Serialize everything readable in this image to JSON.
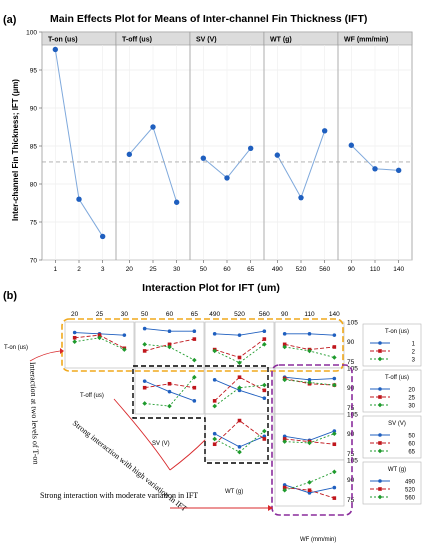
{
  "chart_data": [
    {
      "type": "line",
      "panel_tag": "(a)",
      "title": "Main Effects Plot for Means of Inter-channel Fin Thickness (IFT)",
      "ylabel": "Inter-channel Fin Thickness; IFT (µm)",
      "ylim": [
        70,
        100
      ],
      "yticks": [
        "70",
        "75",
        "80",
        "85",
        "90",
        "95",
        "100"
      ],
      "mean_line": 82.9,
      "grid": true,
      "factors": [
        {
          "name": "T-on (us)",
          "levels": [
            "1",
            "2",
            "3"
          ],
          "values": [
            97.7,
            78.0,
            73.1
          ]
        },
        {
          "name": "T-off (us)",
          "levels": [
            "20",
            "25",
            "30"
          ],
          "values": [
            83.9,
            87.5,
            77.6
          ]
        },
        {
          "name": "SV (V)",
          "levels": [
            "50",
            "60",
            "65"
          ],
          "values": [
            83.4,
            80.8,
            84.7
          ]
        },
        {
          "name": "WT (g)",
          "levels": [
            "490",
            "520",
            "560"
          ],
          "values": [
            83.8,
            78.2,
            87.0
          ]
        },
        {
          "name": "WF (mm/min)",
          "levels": [
            "90",
            "110",
            "140"
          ],
          "values": [
            85.1,
            82.0,
            81.8
          ]
        }
      ]
    },
    {
      "type": "line",
      "panel_tag": "(b)",
      "title": "Interaction Plot for IFT (um)",
      "right_ticks": [
        "75",
        "90",
        "105"
      ],
      "factors": [
        {
          "name": "T-on (us)",
          "levels": [
            "1",
            "2",
            "3"
          ]
        },
        {
          "name": "T-off (us)",
          "levels": [
            "20",
            "25",
            "30"
          ]
        },
        {
          "name": "SV (V)",
          "levels": [
            "50",
            "60",
            "65"
          ]
        },
        {
          "name": "WT (g)",
          "levels": [
            "490",
            "520",
            "560"
          ]
        },
        {
          "name": "WF (mm/min)",
          "levels": [
            "90",
            "110",
            "140"
          ]
        }
      ],
      "top_ticks": [
        [
          "20",
          "25",
          "30"
        ],
        [
          "50",
          "60",
          "65"
        ],
        [
          "490",
          "520",
          "560"
        ],
        [
          "90",
          "110",
          "140"
        ]
      ],
      "legends": [
        {
          "title": "T-on (us)",
          "entries": [
            "1",
            "2",
            "3"
          ]
        },
        {
          "title": "T-off (us)",
          "entries": [
            "20",
            "25",
            "30"
          ]
        },
        {
          "title": "SV (V)",
          "entries": [
            "50",
            "60",
            "65"
          ]
        },
        {
          "title": "WT (g)",
          "entries": [
            "490",
            "520",
            "560"
          ]
        }
      ],
      "series_colors": [
        "#1f5fbf",
        "#c0161c",
        "#1e9a2c"
      ],
      "cells": [
        {
          "row": 0,
          "col": 0,
          "series": [
            [
              97,
              96,
              95
            ],
            [
              93,
              95,
              85
            ],
            [
              90,
              93,
              84
            ]
          ]
        },
        {
          "row": 0,
          "col": 1,
          "series": [
            [
              100,
              98,
              98
            ],
            [
              83,
              88,
              92
            ],
            [
              88,
              86,
              76
            ]
          ]
        },
        {
          "row": 0,
          "col": 2,
          "series": [
            [
              96,
              95,
              98
            ],
            [
              84,
              78,
              92
            ],
            [
              83,
              74,
              88
            ]
          ]
        },
        {
          "row": 0,
          "col": 3,
          "series": [
            [
              96,
              96,
              95
            ],
            [
              88,
              84,
              86
            ],
            [
              86,
              83,
              78
            ]
          ]
        },
        {
          "row": 1,
          "col": 1,
          "series": [
            [
              95,
              87,
              80
            ],
            [
              90,
              93,
              90
            ],
            [
              78,
              76,
              98
            ]
          ]
        },
        {
          "row": 1,
          "col": 2,
          "series": [
            [
              96,
              88,
              82
            ],
            [
              80,
              98,
              88
            ],
            [
              76,
              90,
              92
            ]
          ]
        },
        {
          "row": 1,
          "col": 3,
          "series": [
            [
              98,
              96,
              97
            ],
            [
              97,
              93,
              92
            ],
            [
              96,
              94,
              92
            ]
          ]
        },
        {
          "row": 2,
          "col": 2,
          "series": [
            [
              90,
              80,
              88
            ],
            [
              82,
              100,
              86
            ],
            [
              86,
              76,
              92
            ]
          ]
        },
        {
          "row": 2,
          "col": 3,
          "series": [
            [
              88,
              85,
              92
            ],
            [
              86,
              84,
              82
            ],
            [
              84,
              83,
              90
            ]
          ]
        },
        {
          "row": 3,
          "col": 3,
          "series": [
            [
              86,
              80,
              84
            ],
            [
              84,
              82,
              76
            ],
            [
              82,
              88,
              96
            ]
          ]
        }
      ],
      "annotations": [
        "Interaction at two levels of T-on",
        "Strong interaction with high variation in IFT",
        "Strong interaction with moderate variation in IFT"
      ]
    }
  ]
}
